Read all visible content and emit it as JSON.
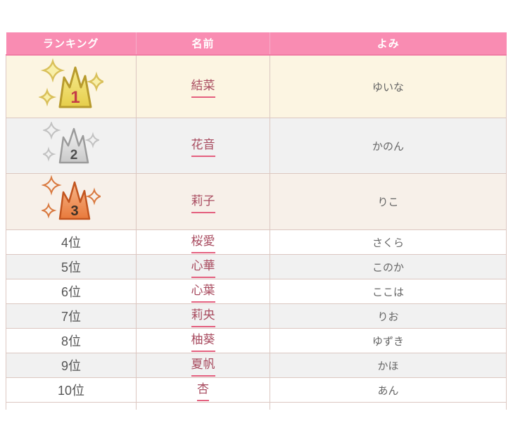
{
  "header": {
    "ranking": "ランキング",
    "name": "名前",
    "reading": "よみ"
  },
  "rows": [
    {
      "rank_label": "1",
      "rank_style": "gold",
      "name": "結菜",
      "reading": "ゆいな"
    },
    {
      "rank_label": "2",
      "rank_style": "silver",
      "name": "花音",
      "reading": "かのん"
    },
    {
      "rank_label": "3",
      "rank_style": "bronze",
      "name": "莉子",
      "reading": "りこ"
    },
    {
      "rank_label": "4位",
      "rank_style": "plain",
      "name": "桜愛",
      "reading": "さくら"
    },
    {
      "rank_label": "5位",
      "rank_style": "plain",
      "name": "心華",
      "reading": "このか"
    },
    {
      "rank_label": "6位",
      "rank_style": "plain",
      "name": "心葉",
      "reading": "ここは"
    },
    {
      "rank_label": "7位",
      "rank_style": "plain",
      "name": "莉央",
      "reading": "りお"
    },
    {
      "rank_label": "8位",
      "rank_style": "plain",
      "name": "柚葵",
      "reading": "ゆずき"
    },
    {
      "rank_label": "9位",
      "rank_style": "plain",
      "name": "夏帆",
      "reading": "かほ"
    },
    {
      "rank_label": "10位",
      "rank_style": "plain",
      "name": "杏",
      "reading": "あん"
    }
  ],
  "colors": {
    "header_bg": "#F98CB2",
    "header_text": "#FFFFFF",
    "header_bottom_edge": "#F07BA4",
    "cell_border": "#DCC7C1",
    "row1_bg": "#FCF5E2",
    "row_stripe_bg": "#F1F1F1",
    "row3_bg": "#F7F0E9",
    "rank_text": "#555555",
    "name_link": "#A84B5F",
    "name_underline": "#E4607F",
    "reading_text": "#666666"
  },
  "crowns": {
    "gold": {
      "fill_top": "#F7EB8F",
      "fill_bottom": "#E6CE4B",
      "stroke": "#B89B2E",
      "number_color": "#C43C47",
      "sparkle_fill": "#F8EFA8",
      "sparkle_stroke": "#D9C05A"
    },
    "silver": {
      "fill_top": "#F2F2F2",
      "fill_bottom": "#C9C9C9",
      "stroke": "#9B9B9B",
      "number_color": "#4F4F4F",
      "sparkle_fill": "none",
      "sparkle_stroke": "#C2C2C2"
    },
    "bronze": {
      "fill_top": "#F8B98C",
      "fill_bottom": "#E8793B",
      "stroke": "#C2551F",
      "number_color": "#3E3228",
      "sparkle_fill": "none",
      "sparkle_stroke": "#D9793F"
    }
  }
}
